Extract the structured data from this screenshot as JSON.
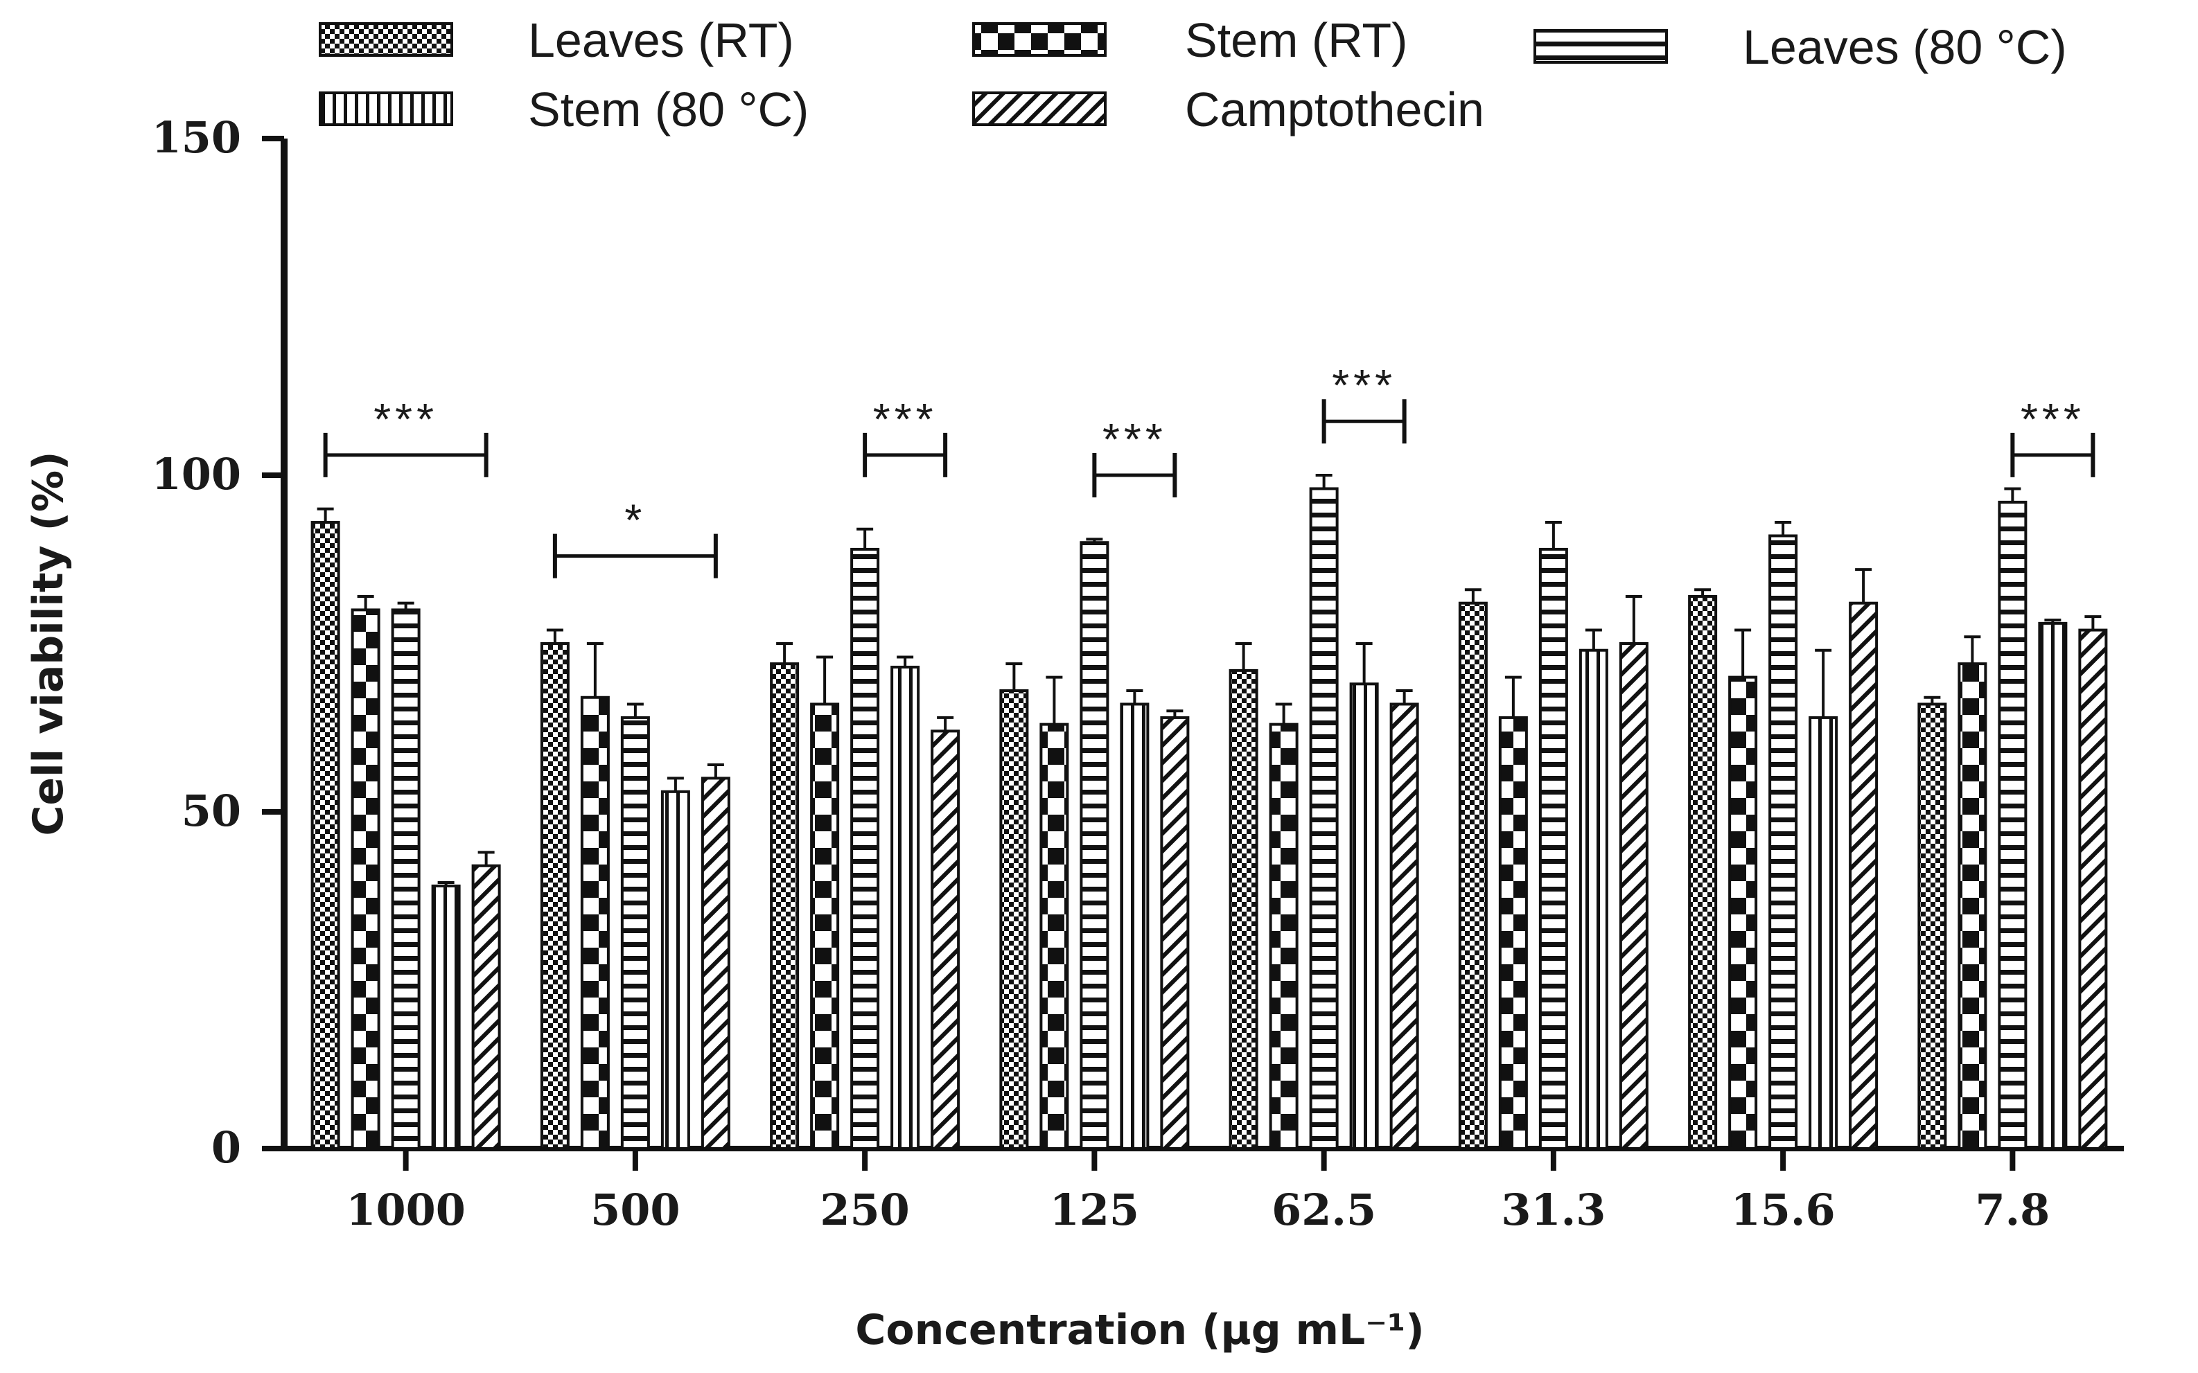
{
  "chart_data": {
    "type": "bar",
    "title": "",
    "xlabel": "Concentration (μg mL⁻¹)",
    "ylabel": "Cell viability (%)",
    "ylim": [
      0,
      150
    ],
    "yticks": [
      "0",
      "50",
      "100",
      "150"
    ],
    "categories": [
      "1000",
      "500",
      "250",
      "125",
      "62.5",
      "31.3",
      "15.6",
      "7.8"
    ],
    "legend_position": "top",
    "series": [
      {
        "name": "Leaves (RT)",
        "pattern": "checker-small",
        "values": [
          93,
          75,
          72,
          68,
          71,
          81,
          82,
          66
        ],
        "errors": [
          2,
          2,
          3,
          4,
          4,
          2,
          1,
          1
        ]
      },
      {
        "name": "Stem (RT)",
        "pattern": "checker-large",
        "values": [
          80,
          67,
          66,
          63,
          63,
          64,
          70,
          72
        ],
        "errors": [
          2,
          8,
          7,
          7,
          3,
          6,
          7,
          4
        ]
      },
      {
        "name": "Leaves (80 °C)",
        "pattern": "horizontal-lines",
        "values": [
          80,
          64,
          89,
          90,
          98,
          89,
          91,
          96
        ],
        "errors": [
          1,
          2,
          3,
          0.5,
          2,
          4,
          2,
          2
        ]
      },
      {
        "name": "Stem (80 °C)",
        "pattern": "vertical-lines",
        "values": [
          39,
          53,
          71.5,
          66,
          69,
          74,
          64,
          78
        ],
        "errors": [
          0.5,
          2,
          1.5,
          2,
          6,
          3,
          10,
          0.5
        ]
      },
      {
        "name": "Camptothecin",
        "pattern": "diagonal-lines",
        "values": [
          42,
          55,
          62,
          64,
          66,
          75,
          81,
          77
        ],
        "errors": [
          2,
          2,
          2,
          1,
          2,
          7,
          5,
          2
        ]
      }
    ],
    "significance": [
      {
        "category": "1000",
        "from_series": 0,
        "to_series": 4,
        "label": "***",
        "height": 103
      },
      {
        "category": "500",
        "from_series": 0,
        "to_series": 4,
        "label": "*",
        "height": 88
      },
      {
        "category": "250",
        "from_series": 2,
        "to_series": 4,
        "label": "***",
        "height": 103
      },
      {
        "category": "125",
        "from_series": 2,
        "to_series": 4,
        "label": "***",
        "height": 100
      },
      {
        "category": "62.5",
        "from_series": 2,
        "to_series": 4,
        "label": "***",
        "height": 108
      },
      {
        "category": "7.8",
        "from_series": 2,
        "to_series": 4,
        "label": "***",
        "height": 103
      }
    ]
  }
}
